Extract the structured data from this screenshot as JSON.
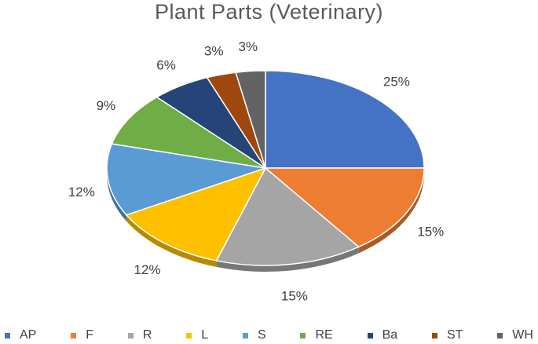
{
  "chart_data": {
    "type": "pie",
    "title": "Plant Parts (Veterinary)",
    "categories": [
      "AP",
      "F",
      "R",
      "L",
      "S",
      "RE",
      "Ba",
      "ST",
      "WH"
    ],
    "values": [
      25,
      15,
      15,
      12,
      12,
      9,
      6,
      3,
      3
    ],
    "data_labels": [
      "25%",
      "15%",
      "15%",
      "12%",
      "12%",
      "9%",
      "6%",
      "3%",
      "3%"
    ],
    "colors": [
      "#4472C4",
      "#ED7D31",
      "#A5A5A5",
      "#FFC000",
      "#5B9BD5",
      "#70AD47",
      "#264478",
      "#9E480E",
      "#636363"
    ],
    "legend_position": "bottom",
    "style": "3d-pie"
  }
}
